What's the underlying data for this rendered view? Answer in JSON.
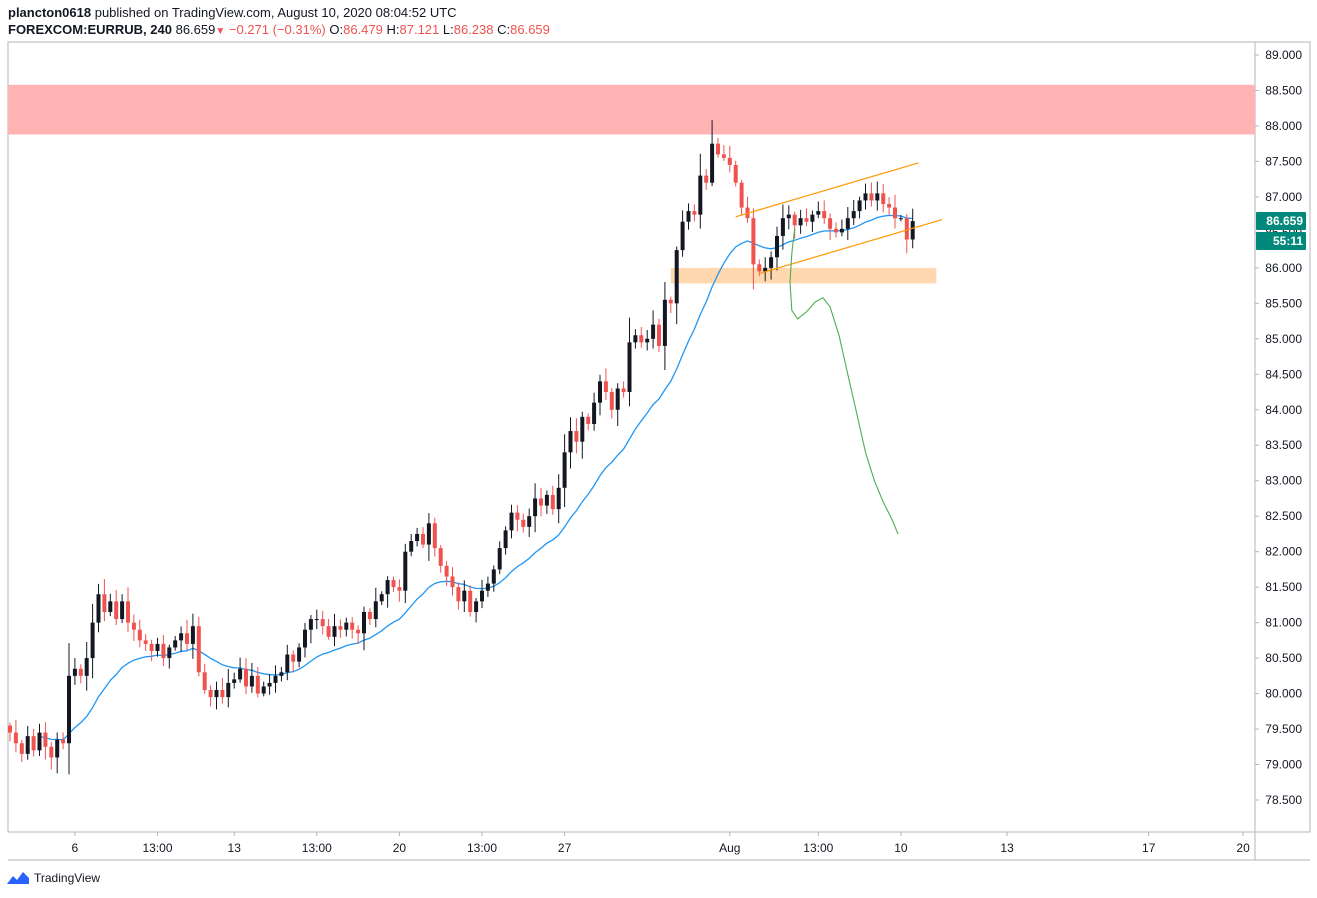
{
  "header": {
    "author": "plancton0618",
    "published_text": "published on TradingView.com, August 10, 2020 08:04:52 UTC",
    "symbol": "FOREXCOM:EURRUB, 240",
    "last": "86.659",
    "change": "−0.271 (−0.31%)",
    "open_label": "O:",
    "open": "86.479",
    "high_label": "H:",
    "high": "87.121",
    "low_label": "L:",
    "low": "86.238",
    "close_label": "C:",
    "close": "86.659"
  },
  "price_badge": "86.659",
  "countdown_badge": "55:11",
  "footer": {
    "brand": "TradingView"
  },
  "colors": {
    "up": "#131722",
    "down": "#ef5350",
    "ma": "#2196f3",
    "resistance_zone": "#ffb3b3",
    "support_zone": "#ffd8b0",
    "channel": "#ff9800",
    "projection": "#4caf50",
    "badge": "#00897b"
  },
  "chart_data": {
    "type": "candlestick",
    "y_ticks": [
      "89.000",
      "88.500",
      "88.000",
      "87.500",
      "87.000",
      "86.500",
      "86.000",
      "85.500",
      "85.000",
      "84.500",
      "84.000",
      "83.500",
      "83.000",
      "82.500",
      "82.000",
      "81.500",
      "81.000",
      "80.500",
      "80.000",
      "79.500",
      "79.000",
      "78.500"
    ],
    "x_ticks": [
      {
        "label": "6",
        "i": 11
      },
      {
        "label": "13:00",
        "i": 25
      },
      {
        "label": "13",
        "i": 38
      },
      {
        "label": "13:00",
        "i": 52
      },
      {
        "label": "20",
        "i": 66
      },
      {
        "label": "13:00",
        "i": 80
      },
      {
        "label": "27",
        "i": 94
      },
      {
        "label": "Aug",
        "i": 122
      },
      {
        "label": "13:00",
        "i": 137
      },
      {
        "label": "10",
        "i": 151
      },
      {
        "label": "13",
        "i": 169
      },
      {
        "label": "17",
        "i": 193
      },
      {
        "label": "20",
        "i": 209
      }
    ],
    "ylim": [
      78.0,
      89.25
    ],
    "closes": [
      79.45,
      79.3,
      79.15,
      79.4,
      79.2,
      79.45,
      79.25,
      79.1,
      79.35,
      79.3,
      80.25,
      80.35,
      80.25,
      80.5,
      81.0,
      81.4,
      81.15,
      81.3,
      81.05,
      81.3,
      81.0,
      80.9,
      80.75,
      80.7,
      80.6,
      80.7,
      80.5,
      80.65,
      80.75,
      80.85,
      80.7,
      80.95,
      80.3,
      80.05,
      79.95,
      80.05,
      79.95,
      80.15,
      80.2,
      80.35,
      80.1,
      80.25,
      80.0,
      80.1,
      80.15,
      80.25,
      80.3,
      80.55,
      80.45,
      80.65,
      80.9,
      81.05,
      81.05,
      80.95,
      80.8,
      80.95,
      80.9,
      81.0,
      80.9,
      80.85,
      81.15,
      81.05,
      81.3,
      81.4,
      81.6,
      81.5,
      81.45,
      82.0,
      82.15,
      82.25,
      82.1,
      82.4,
      82.05,
      81.8,
      81.65,
      81.5,
      81.3,
      81.45,
      81.15,
      81.3,
      81.45,
      81.55,
      81.75,
      82.05,
      82.3,
      82.55,
      82.45,
      82.35,
      82.5,
      82.75,
      82.65,
      82.8,
      82.6,
      82.9,
      83.4,
      83.7,
      83.55,
      83.9,
      83.8,
      84.1,
      84.4,
      84.25,
      84.0,
      84.3,
      84.25,
      84.95,
      85.05,
      84.95,
      85.0,
      85.2,
      84.9,
      85.55,
      85.5,
      86.25,
      86.65,
      86.8,
      86.75,
      87.3,
      87.2,
      87.75,
      87.6,
      87.55,
      87.45,
      87.2,
      86.85,
      86.7,
      86.05,
      85.95,
      86.0,
      86.15,
      86.45,
      86.7,
      86.75,
      86.6,
      86.7,
      86.65,
      86.75,
      86.8,
      86.7,
      86.55,
      86.5,
      86.55,
      86.7,
      86.8,
      86.95,
      87.05,
      86.95,
      87.05,
      86.9,
      86.85,
      86.7,
      86.7,
      86.4,
      86.659
    ]
  }
}
